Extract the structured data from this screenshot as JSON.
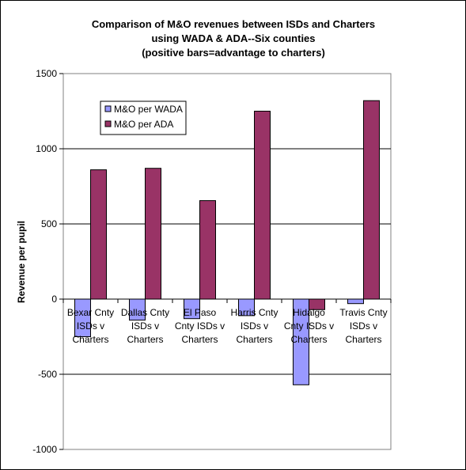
{
  "chart_data": {
    "type": "bar",
    "title": [
      "Comparison of  M&O revenues between ISDs and Charters",
      "using WADA & ADA--Six counties",
      "(positive bars=advantage to charters)"
    ],
    "xlabel": "",
    "ylabel": "Revenue per pupil",
    "ylim": [
      -1000,
      1500
    ],
    "yticks": [
      "-1000",
      "-500",
      "0",
      "500",
      "1000",
      "1500"
    ],
    "grid": true,
    "legend_position": "top-left",
    "categories": [
      [
        "Bexar Cnty",
        "ISDs v",
        "Charters"
      ],
      [
        "Dallas Cnty",
        "ISDs v",
        "Charters"
      ],
      [
        "El Paso",
        "Cnty ISDs v",
        "Charters"
      ],
      [
        "Harris Cnty",
        "ISDs v",
        "Charters"
      ],
      [
        "Hidalgo",
        "Cnty ISDs v",
        "Charters"
      ],
      [
        "Travis Cnty",
        "ISDs v",
        "Charters"
      ]
    ],
    "series": [
      {
        "name": "M&O per WADA",
        "color": "#9999ff",
        "values": [
          -250,
          -140,
          -130,
          -110,
          -570,
          -30
        ]
      },
      {
        "name": "M&O per ADA",
        "color": "#993366",
        "values": [
          860,
          870,
          655,
          1250,
          -70,
          1320
        ]
      }
    ]
  }
}
